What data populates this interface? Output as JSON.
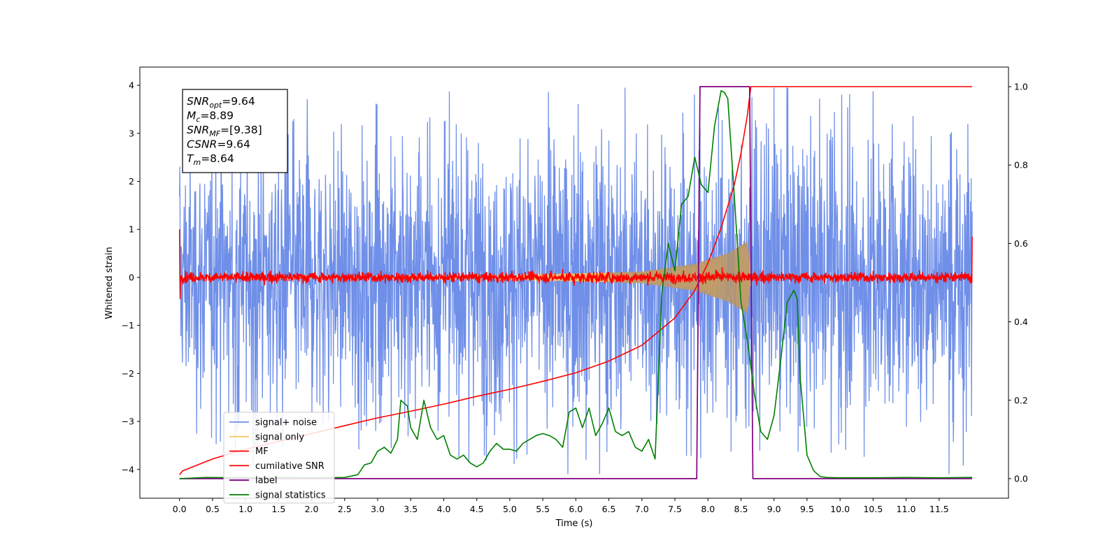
{
  "chart_data": {
    "type": "line",
    "xlabel": "Time (s)",
    "ylabel": "Whitened strain",
    "x_ticks": [
      "0.0",
      "0.5",
      "1.0",
      "1.5",
      "2.0",
      "2.5",
      "3.0",
      "3.5",
      "4.0",
      "4.5",
      "5.0",
      "5.5",
      "6.0",
      "6.5",
      "7.0",
      "7.5",
      "8.0",
      "8.5",
      "9.0",
      "9.5",
      "10.0",
      "10.5",
      "11.0",
      "11.5"
    ],
    "y_ticks_left": [
      "4",
      "3",
      "2",
      "1",
      "0",
      "−1",
      "−2",
      "−3",
      "−4"
    ],
    "y_ticks_right": [
      "1.0",
      "0.8",
      "0.6",
      "0.4",
      "0.2",
      "0.0"
    ],
    "xlim": [
      -0.6,
      12.55
    ],
    "ylim_left": [
      -4.6,
      4.38
    ],
    "ylim_right": [
      -0.05,
      1.05
    ],
    "grid": false,
    "legend_position": "lower left",
    "stats_box": {
      "lines": [
        {
          "base": "SNR",
          "sub": "opt",
          "value": "=9.64"
        },
        {
          "base": "M",
          "sub": "c",
          "value": "=8.89"
        },
        {
          "base": "SNR",
          "sub": "MF",
          "value": "=[9.38]"
        },
        {
          "base": "CSNR",
          "sub": "",
          "value": "=9.64"
        },
        {
          "base": "T",
          "sub": "m",
          "value": "=8.64"
        }
      ]
    },
    "series": [
      {
        "name": "signal+ noise",
        "axis": "left",
        "color": "#6f8fe8",
        "kind": "noise",
        "x_range": [
          0.0,
          12.0
        ],
        "envelope": [
          [
            0.0,
            2.3
          ],
          [
            2.0,
            2.5
          ],
          [
            4.0,
            2.6
          ],
          [
            6.0,
            2.6
          ],
          [
            7.5,
            2.5
          ],
          [
            8.5,
            2.6
          ],
          [
            10.0,
            2.6
          ],
          [
            12.0,
            2.4
          ]
        ],
        "spike_max": 3.95,
        "spike_min": -4.1
      },
      {
        "name": "signal only",
        "axis": "left",
        "color": "#f5c964",
        "kind": "chirp",
        "x_range": [
          0.0,
          8.65
        ],
        "amplitude": [
          [
            0.0,
            0.02
          ],
          [
            5.0,
            0.05
          ],
          [
            7.0,
            0.12
          ],
          [
            7.8,
            0.28
          ],
          [
            8.3,
            0.5
          ],
          [
            8.6,
            0.75
          ],
          [
            8.65,
            0.0
          ]
        ]
      },
      {
        "name": "MF",
        "axis": "left",
        "color": "#ff0000",
        "kind": "noise",
        "x_range": [
          0.0,
          12.0
        ],
        "envelope": [
          [
            0.0,
            0.15
          ],
          [
            12.0,
            0.15
          ]
        ],
        "start_value": 1.0,
        "end_value": 0.85
      },
      {
        "name": "cumilative SNR",
        "axis": "right",
        "color": "#ff0000",
        "x": [
          0.0,
          0.05,
          0.5,
          1.0,
          1.5,
          2.0,
          2.5,
          3.0,
          3.5,
          4.0,
          4.5,
          5.0,
          5.5,
          6.0,
          6.5,
          7.0,
          7.5,
          7.8,
          8.0,
          8.2,
          8.4,
          8.5,
          8.6,
          8.62,
          8.65,
          12.0
        ],
        "y": [
          0.01,
          0.02,
          0.05,
          0.075,
          0.095,
          0.115,
          0.135,
          0.155,
          0.172,
          0.19,
          0.21,
          0.228,
          0.248,
          0.27,
          0.3,
          0.34,
          0.41,
          0.48,
          0.55,
          0.64,
          0.75,
          0.83,
          0.93,
          0.96,
          1.0,
          1.0
        ]
      },
      {
        "name": "label",
        "axis": "right",
        "color": "#800080",
        "x": [
          0.0,
          7.83,
          7.88,
          8.63,
          8.68,
          12.0
        ],
        "y": [
          0.0,
          0.0,
          1.0,
          1.0,
          0.0,
          0.0
        ]
      },
      {
        "name": "signal statistics",
        "axis": "right",
        "color": "#008000",
        "x": [
          0.0,
          0.4,
          1.0,
          1.5,
          2.0,
          2.5,
          2.7,
          2.8,
          2.9,
          3.0,
          3.1,
          3.2,
          3.3,
          3.35,
          3.45,
          3.5,
          3.6,
          3.7,
          3.8,
          3.9,
          4.0,
          4.1,
          4.2,
          4.3,
          4.4,
          4.5,
          4.6,
          4.7,
          4.8,
          4.9,
          5.0,
          5.1,
          5.2,
          5.3,
          5.4,
          5.5,
          5.6,
          5.7,
          5.8,
          5.9,
          6.0,
          6.1,
          6.2,
          6.3,
          6.4,
          6.5,
          6.6,
          6.7,
          6.8,
          6.9,
          7.0,
          7.1,
          7.2,
          7.3,
          7.4,
          7.5,
          7.6,
          7.7,
          7.8,
          7.9,
          8.0,
          8.1,
          8.2,
          8.25,
          8.3,
          8.4,
          8.5,
          8.6,
          8.7,
          8.8,
          8.9,
          9.0,
          9.1,
          9.2,
          9.3,
          9.35,
          9.4,
          9.5,
          9.6,
          9.7,
          9.8,
          10.0,
          10.5,
          11.0,
          11.5,
          11.9,
          12.0
        ],
        "y": [
          0.0,
          0.003,
          0.002,
          0.003,
          0.002,
          0.003,
          0.01,
          0.035,
          0.04,
          0.07,
          0.08,
          0.065,
          0.1,
          0.2,
          0.185,
          0.13,
          0.1,
          0.2,
          0.13,
          0.1,
          0.11,
          0.06,
          0.05,
          0.06,
          0.04,
          0.03,
          0.04,
          0.07,
          0.09,
          0.075,
          0.075,
          0.07,
          0.09,
          0.1,
          0.11,
          0.115,
          0.11,
          0.1,
          0.08,
          0.17,
          0.18,
          0.13,
          0.18,
          0.11,
          0.14,
          0.18,
          0.12,
          0.11,
          0.12,
          0.08,
          0.07,
          0.1,
          0.05,
          0.47,
          0.6,
          0.53,
          0.7,
          0.72,
          0.82,
          0.75,
          0.73,
          0.9,
          0.99,
          0.985,
          0.97,
          0.72,
          0.45,
          0.35,
          0.22,
          0.12,
          0.1,
          0.16,
          0.3,
          0.45,
          0.48,
          0.46,
          0.25,
          0.06,
          0.02,
          0.005,
          0.003,
          0.002,
          0.002,
          0.003,
          0.002,
          0.003,
          0.003
        ]
      }
    ]
  }
}
